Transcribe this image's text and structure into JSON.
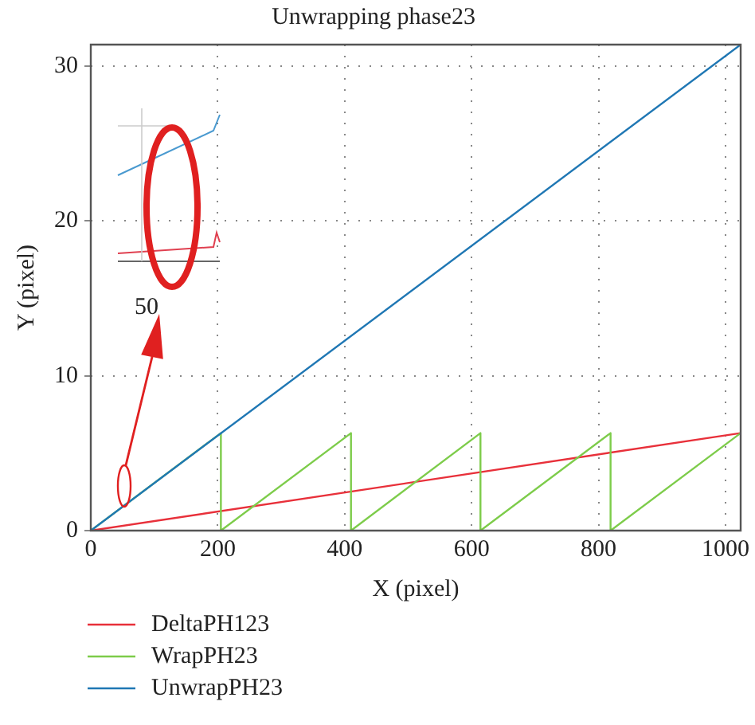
{
  "chart_data": {
    "type": "line",
    "title": "Unwrapping phase23",
    "xlabel": "X (pixel)",
    "ylabel": "Y (pixel)",
    "xlim": [
      0,
      1024
    ],
    "ylim": [
      0,
      31.4
    ],
    "xticks": [
      0,
      200,
      400,
      600,
      800,
      1000
    ],
    "yticks": [
      0,
      10,
      20,
      30
    ],
    "grid": true,
    "legend": "bottom left",
    "line_style": "solid",
    "marker": "none",
    "annotations": [
      "50"
    ],
    "series": [
      {
        "name": "DeltaPH123",
        "color": "#e8303a",
        "x": [
          0,
          1024
        ],
        "values": [
          0,
          6.3
        ]
      },
      {
        "name": "WrapPH23",
        "color": "#7dcc4a",
        "x": [
          0,
          205,
          205,
          410,
          410,
          614,
          614,
          819,
          819,
          1024
        ],
        "values": [
          0,
          6.3,
          0,
          6.3,
          0,
          6.3,
          0,
          6.3,
          0,
          6.3
        ]
      },
      {
        "name": "UnwrapPH23",
        "color": "#1f77b4",
        "x": [
          0,
          1024
        ],
        "values": [
          0,
          31.4
        ]
      }
    ]
  }
}
